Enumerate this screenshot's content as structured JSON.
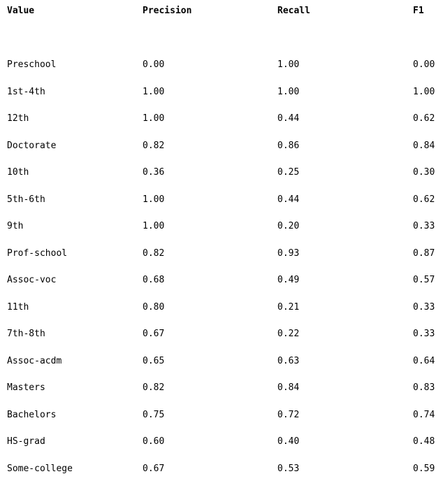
{
  "table": {
    "headers": [
      "Value",
      "Precision",
      "Recall",
      "F1"
    ],
    "rows": [
      [
        "Preschool",
        "0.00",
        "1.00",
        "0.00"
      ],
      [
        "1st-4th",
        "1.00",
        "1.00",
        "1.00"
      ],
      [
        "12th",
        "1.00",
        "0.44",
        "0.62"
      ],
      [
        "Doctorate",
        "0.82",
        "0.86",
        "0.84"
      ],
      [
        "10th",
        "0.36",
        "0.25",
        "0.30"
      ],
      [
        "5th-6th",
        "1.00",
        "0.44",
        "0.62"
      ],
      [
        "9th",
        "1.00",
        "0.20",
        "0.33"
      ],
      [
        "Prof-school",
        "0.82",
        "0.93",
        "0.87"
      ],
      [
        "Assoc-voc",
        "0.68",
        "0.49",
        "0.57"
      ],
      [
        "11th",
        "0.80",
        "0.21",
        "0.33"
      ],
      [
        "7th-8th",
        "0.67",
        "0.22",
        "0.33"
      ],
      [
        "Assoc-acdm",
        "0.65",
        "0.63",
        "0.64"
      ],
      [
        "Masters",
        "0.82",
        "0.84",
        "0.83"
      ],
      [
        "Bachelors",
        "0.75",
        "0.72",
        "0.74"
      ],
      [
        "HS-grad",
        "0.60",
        "0.40",
        "0.48"
      ],
      [
        "Some-college",
        "0.67",
        "0.53",
        "0.59"
      ]
    ]
  }
}
